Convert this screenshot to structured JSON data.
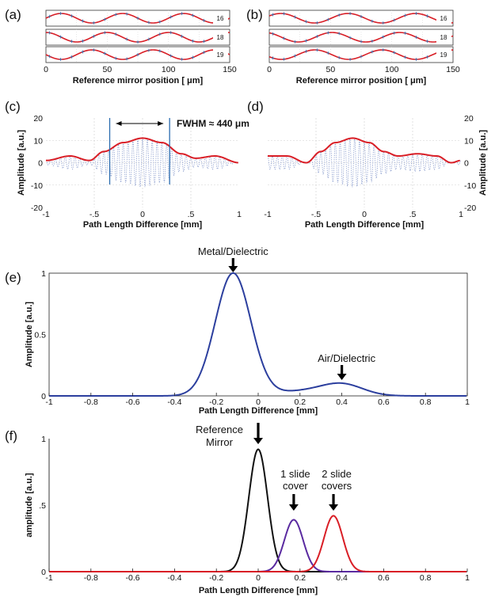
{
  "colors": {
    "red": "#d91e26",
    "blue": "#2c3f9e",
    "black": "#111111",
    "purple": "#5a2aa0",
    "dotted_blue": "#7f93c9",
    "marker_blue": "#2b6cb0",
    "grid": "#cfcfcf"
  },
  "chart_data": [
    {
      "panel": "(a)",
      "type": "line",
      "xlabel": "Reference mirror position [   μm]",
      "xlim": [
        0,
        150
      ],
      "xticks": [
        "0",
        "50",
        "100",
        "150"
      ],
      "grid": true,
      "strips": [
        {
          "label": "16",
          "period": 50,
          "phase": 0
        },
        {
          "label": "18",
          "period": 50,
          "phase": 1.57
        },
        {
          "label": "19",
          "period": 50,
          "phase": 3.14
        }
      ]
    },
    {
      "panel": "(b)",
      "type": "line",
      "xlabel": "Reference mirror position [   μm]",
      "xlim": [
        0,
        150
      ],
      "xticks": [
        "0",
        "50",
        "100",
        "150"
      ],
      "grid": true,
      "strips": [
        {
          "label": "16",
          "period": 55,
          "phase": 0.5
        },
        {
          "label": "18",
          "period": 55,
          "phase": 2.0
        },
        {
          "label": "19",
          "period": 55,
          "phase": 3.6
        }
      ]
    },
    {
      "panel": "(c)",
      "type": "line",
      "xlabel": "Path Length Difference [mm]",
      "ylabel": "Amplitude [a.u.]",
      "xlim": [
        -1,
        1
      ],
      "ylim": [
        -20,
        20
      ],
      "xticks": [
        "-1",
        "-.5",
        "0",
        ".5",
        "1"
      ],
      "yticks": [
        "20",
        "10",
        "0",
        "-10",
        "-20"
      ],
      "grid": true,
      "annotation": "FWHM ≈ 440 μm",
      "markers_x": [
        -0.34,
        0.28
      ],
      "envelope": {
        "x": [
          -1,
          -0.75,
          -0.55,
          -0.4,
          -0.2,
          0,
          0.2,
          0.4,
          0.55,
          0.75,
          1
        ],
        "y": [
          1,
          3,
          1,
          5,
          9,
          11,
          9,
          4,
          2,
          3,
          0
        ]
      }
    },
    {
      "panel": "(d)",
      "type": "line",
      "xlabel": "Path Length Difference [mm]",
      "ylabel": "Amplitude [a.u.]",
      "xlim": [
        -1,
        1
      ],
      "ylim": [
        -20,
        20
      ],
      "xticks": [
        "-1",
        "-.5",
        "0",
        ".5",
        "1"
      ],
      "yticks": [
        "20",
        "10",
        "0",
        "-10",
        "-20"
      ],
      "grid": true,
      "envelope": {
        "x": [
          -1,
          -0.8,
          -0.6,
          -0.45,
          -0.3,
          -0.12,
          0.05,
          0.2,
          0.35,
          0.55,
          0.75,
          0.9,
          1
        ],
        "y": [
          3,
          3,
          0,
          5,
          9,
          11,
          9,
          5,
          3,
          4,
          3,
          0,
          1
        ]
      }
    },
    {
      "panel": "(e)",
      "type": "line",
      "xlabel": "Path Length Difference [mm]",
      "ylabel": "Amplitude [a.u.]",
      "xlim": [
        -1,
        1
      ],
      "ylim": [
        0,
        1
      ],
      "xticks": [
        "-1",
        "-0.8",
        "-0.6",
        "-0.4",
        "-0.2",
        "0",
        "0.2",
        "0.4",
        "0.6",
        "0.8",
        "1"
      ],
      "yticks": [
        "1",
        "0.5",
        "0"
      ],
      "annotations": [
        {
          "text": "Metal/Dielectric",
          "x": -0.12
        },
        {
          "text": "Air/Dielectric",
          "x": 0.4
        }
      ],
      "peaks": [
        {
          "center": -0.12,
          "amp": 1.0,
          "width": 0.085
        },
        {
          "center": 0.4,
          "amp": 0.095,
          "width": 0.1
        },
        {
          "center": 0.2,
          "amp": 0.035,
          "width": 0.12
        }
      ]
    },
    {
      "panel": "(f)",
      "type": "line",
      "xlabel": "Path Length Difference [mm]",
      "ylabel": "amplitude [a.u.]",
      "xlim": [
        -1,
        1
      ],
      "ylim": [
        0,
        1
      ],
      "xticks": [
        "-1",
        "-0.8",
        "-0.6",
        "-0.4",
        "-0.2",
        "0",
        "0.2",
        "0.4",
        "0.6",
        "0.8",
        "1"
      ],
      "yticks": [
        "1",
        ".5",
        "0"
      ],
      "annotations": [
        {
          "lines": [
            "Reference",
            "Mirror"
          ],
          "x": 0.0
        },
        {
          "lines": [
            "1 slide",
            "cover"
          ],
          "x": 0.17
        },
        {
          "lines": [
            "2 slide",
            "covers"
          ],
          "x": 0.36
        }
      ],
      "series": [
        {
          "color_key": "black",
          "center": 0.0,
          "amp": 0.92,
          "width": 0.045
        },
        {
          "color_key": "purple",
          "center": 0.17,
          "amp": 0.39,
          "width": 0.045
        },
        {
          "color_key": "red",
          "center": 0.36,
          "amp": 0.42,
          "width": 0.045
        }
      ]
    }
  ]
}
